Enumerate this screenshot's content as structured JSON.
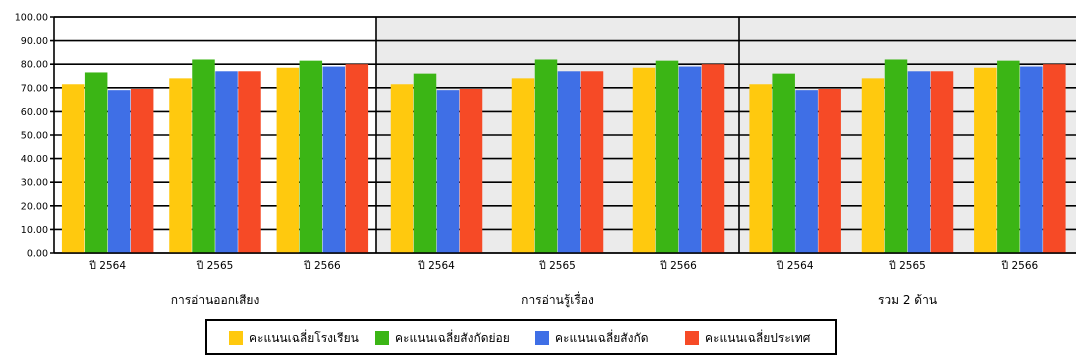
{
  "chart_data": {
    "type": "bar",
    "title": "",
    "xlabel": "",
    "ylabel": "",
    "ylim": [
      0,
      100
    ],
    "yticks": [
      "0.00",
      "10.00",
      "20.00",
      "30.00",
      "40.00",
      "50.00",
      "60.00",
      "70.00",
      "80.00",
      "90.00",
      "100.00"
    ],
    "grid": true,
    "legend_position": "bottom",
    "groups": [
      {
        "label": "การอ่านออกเสียง",
        "shaded": false,
        "categories": [
          "ปี 2564",
          "ปี 2565",
          "ปี 2566"
        ],
        "series": [
          {
            "name": "คะแนนเฉลี่ยโรงเรียน",
            "values": [
              71.5,
              74,
              78.5
            ]
          },
          {
            "name": "คะแนนเฉลี่ยสังกัดย่อย",
            "values": [
              76.5,
              82,
              81.5
            ]
          },
          {
            "name": "คะแนนเฉลี่ยสังกัด",
            "values": [
              69,
              77,
              79
            ]
          },
          {
            "name": "คะแนนเฉลี่ยประเทศ",
            "values": [
              69.5,
              77,
              80
            ]
          }
        ]
      },
      {
        "label": "การอ่านรู้เรื่อง",
        "shaded": true,
        "categories": [
          "ปี 2564",
          "ปี 2565",
          "ปี 2566"
        ],
        "series": [
          {
            "name": "คะแนนเฉลี่ยโรงเรียน",
            "values": [
              71.5,
              74,
              78.5
            ]
          },
          {
            "name": "คะแนนเฉลี่ยสังกัดย่อย",
            "values": [
              76,
              82,
              81.5
            ]
          },
          {
            "name": "คะแนนเฉลี่ยสังกัด",
            "values": [
              69,
              77,
              79
            ]
          },
          {
            "name": "คะแนนเฉลี่ยประเทศ",
            "values": [
              69.5,
              77,
              80
            ]
          }
        ]
      },
      {
        "label": "รวม 2 ด้าน",
        "shaded": true,
        "categories": [
          "ปี 2564",
          "ปี 2565",
          "ปี 2566"
        ],
        "series": [
          {
            "name": "คะแนนเฉลี่ยโรงเรียน",
            "values": [
              71.5,
              74,
              78.5
            ]
          },
          {
            "name": "คะแนนเฉลี่ยสังกัดย่อย",
            "values": [
              76,
              82,
              81.5
            ]
          },
          {
            "name": "คะแนนเฉลี่ยสังกัด",
            "values": [
              69,
              77,
              79
            ]
          },
          {
            "name": "คะแนนเฉลี่ยประเทศ",
            "values": [
              69.5,
              77,
              80
            ]
          }
        ]
      }
    ],
    "legend": [
      {
        "name": "คะแนนเฉลี่ยโรงเรียน",
        "color": "#FFC90E"
      },
      {
        "name": "คะแนนเฉลี่ยสังกัดย่อย",
        "color": "#3BB515"
      },
      {
        "name": "คะแนนเฉลี่ยสังกัด",
        "color": "#3F6FE6"
      },
      {
        "name": "คะแนนเฉลี่ยประเทศ",
        "color": "#F64A26"
      }
    ],
    "colors": {
      "shade": "#EBEBEB",
      "grid": "#000000"
    }
  }
}
